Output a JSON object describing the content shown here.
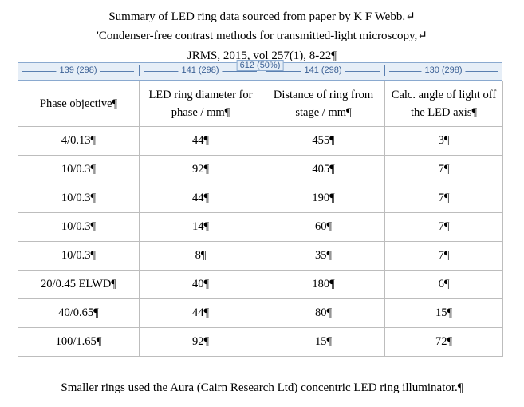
{
  "title": {
    "line1": "Summary of LED ring data sourced from paper by K F Webb.↵",
    "line2": "'Condenser-free contrast methods for transmitted-light microscopy,↵",
    "line3": "JRMS, 2015, vol 257(1), 8-22¶"
  },
  "ruler": {
    "total": "612 (50%)",
    "columns": [
      "139 (298)",
      "141 (298)",
      "141 (298)",
      "130 (298)"
    ]
  },
  "table": {
    "headers": [
      "Phase objective¶",
      "LED ring diameter for phase / mm¶",
      "Distance of ring from stage / mm¶",
      "Calc. angle of light off the LED axis¶"
    ],
    "rows": [
      [
        "4/0.13¶",
        "44¶",
        "455¶",
        "3¶"
      ],
      [
        "10/0.3¶",
        "92¶",
        "405¶",
        "7¶"
      ],
      [
        "10/0.3¶",
        "44¶",
        "190¶",
        "7¶"
      ],
      [
        "10/0.3¶",
        "14¶",
        "60¶",
        "7¶"
      ],
      [
        "10/0.3¶",
        "8¶",
        "35¶",
        "7¶"
      ],
      [
        "20/0.45 ELWD¶",
        "40¶",
        "180¶",
        "6¶"
      ],
      [
        "40/0.65¶",
        "44¶",
        "80¶",
        "15¶"
      ],
      [
        "100/1.65¶",
        "92¶",
        "15¶",
        "72¶"
      ]
    ]
  },
  "footer": "Smaller rings used the Aura (Cairn Research Ltd) concentric LED ring illuminator.¶"
}
